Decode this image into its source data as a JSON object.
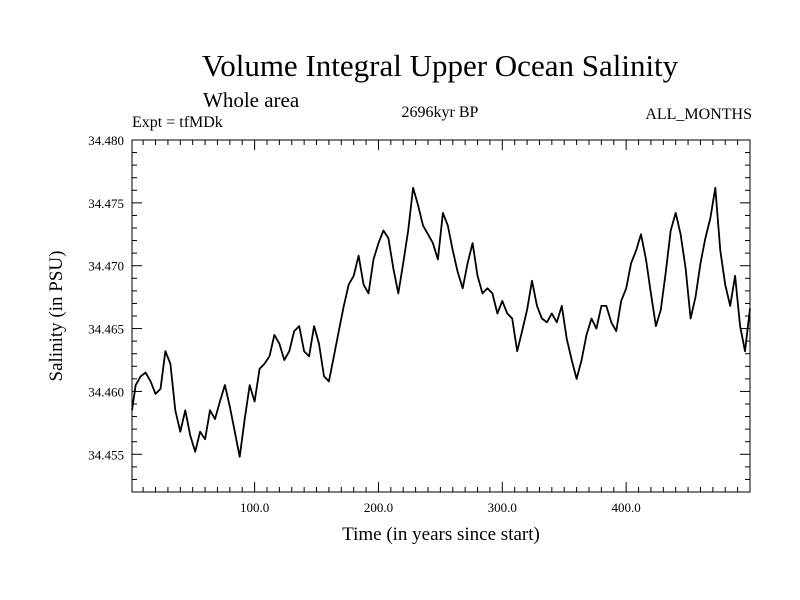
{
  "header": {
    "title": "Volume Integral Upper Ocean Salinity",
    "subtitle": "Whole area",
    "experiment": "Expt = tfMDk",
    "period": "2696kyr BP",
    "months": "ALL_MONTHS"
  },
  "chart_data": {
    "type": "line",
    "title": "Volume Integral Upper Ocean Salinity",
    "xlabel": "Time (in years since start)",
    "ylabel": "Salinity (in PSU)",
    "xlim": [
      1,
      500
    ],
    "ylim": [
      34.452,
      34.48
    ],
    "x_ticks": [
      100,
      200,
      300,
      400
    ],
    "x_tick_labels": [
      "100.0",
      "200.0",
      "300.0",
      "400.0"
    ],
    "y_ticks": [
      34.455,
      34.46,
      34.465,
      34.47,
      34.475,
      34.48
    ],
    "y_tick_labels": [
      "34.455",
      "34.460",
      "34.465",
      "34.470",
      "34.475",
      "34.480"
    ],
    "grid": false,
    "series": [
      {
        "name": "Salinity",
        "color": "#000000",
        "x": [
          1,
          4,
          8,
          12,
          16,
          20,
          24,
          28,
          32,
          36,
          40,
          44,
          48,
          52,
          56,
          60,
          64,
          68,
          72,
          76,
          80,
          84,
          88,
          92,
          96,
          100,
          104,
          108,
          112,
          116,
          120,
          124,
          128,
          132,
          136,
          140,
          144,
          148,
          152,
          156,
          160,
          164,
          168,
          172,
          176,
          180,
          184,
          188,
          192,
          196,
          200,
          204,
          208,
          212,
          216,
          220,
          224,
          228,
          232,
          236,
          240,
          244,
          248,
          252,
          256,
          260,
          264,
          268,
          272,
          276,
          280,
          284,
          288,
          292,
          296,
          300,
          304,
          308,
          312,
          316,
          320,
          324,
          328,
          332,
          336,
          340,
          344,
          348,
          352,
          356,
          360,
          364,
          368,
          372,
          376,
          380,
          384,
          388,
          392,
          396,
          400,
          404,
          408,
          412,
          416,
          420,
          424,
          428,
          432,
          436,
          440,
          444,
          448,
          452,
          456,
          460,
          464,
          468,
          472,
          476,
          480,
          484,
          488,
          492,
          496,
          500
        ],
        "values": [
          34.4585,
          34.4605,
          34.4612,
          34.4615,
          34.4608,
          34.4598,
          34.4602,
          34.4632,
          34.4622,
          34.4585,
          34.4568,
          34.4585,
          34.4565,
          34.4552,
          34.4568,
          34.4562,
          34.4585,
          34.4578,
          34.4592,
          34.4605,
          34.4588,
          34.4568,
          34.4548,
          34.4578,
          34.4605,
          34.4592,
          34.4618,
          34.4622,
          34.4628,
          34.4645,
          34.4638,
          34.4625,
          34.4632,
          34.4648,
          34.4652,
          34.4632,
          34.4628,
          34.4652,
          34.4638,
          34.4612,
          34.4608,
          34.4628,
          34.4648,
          34.4668,
          34.4685,
          34.4692,
          34.4708,
          34.4685,
          34.4678,
          34.4705,
          34.4718,
          34.4728,
          34.4722,
          34.4698,
          34.4678,
          34.4702,
          34.4728,
          34.4762,
          34.4748,
          34.4732,
          34.4725,
          34.4718,
          34.4705,
          34.4742,
          34.4732,
          34.4712,
          34.4695,
          34.4682,
          34.4702,
          34.4718,
          34.4692,
          34.4678,
          34.4682,
          34.4678,
          34.4662,
          34.4672,
          34.4662,
          34.4658,
          34.4632,
          34.4648,
          34.4665,
          34.4688,
          34.4668,
          34.4658,
          34.4655,
          34.4662,
          34.4655,
          34.4668,
          34.4642,
          34.4625,
          34.461,
          34.4625,
          34.4645,
          34.4658,
          34.465,
          34.4668,
          34.4668,
          34.4655,
          34.4648,
          34.4672,
          34.4682,
          34.4702,
          34.4712,
          34.4725,
          34.4705,
          34.4678,
          34.4652,
          34.4665,
          34.4695,
          34.4728,
          34.4742,
          34.4725,
          34.4698,
          34.4658,
          34.4675,
          34.4702,
          34.4722,
          34.4738,
          34.4762,
          34.4712,
          34.4685,
          34.4668,
          34.4692,
          34.4652,
          34.4632,
          34.4666
        ]
      }
    ]
  }
}
